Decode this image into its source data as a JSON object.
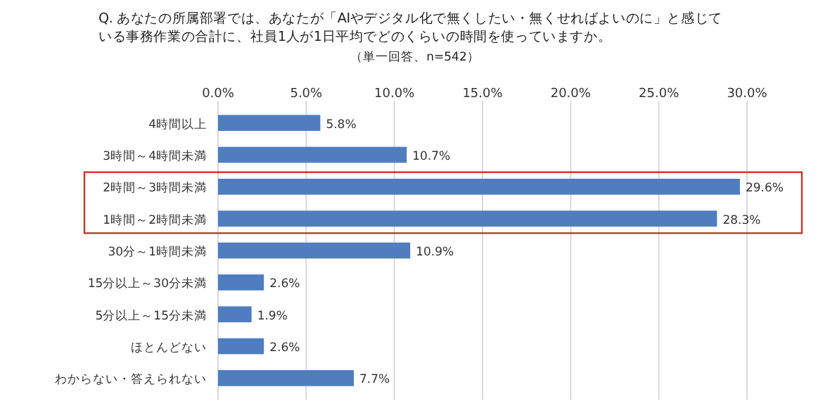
{
  "chart_data": {
    "type": "bar",
    "orientation": "horizontal",
    "title": "Q. あなたの所属部署では、あなたが「AIやデジタル化で無くしたい・無くせればよいのに」と感じている事務作業の合計に、社員1人が1日平均でどのくらいの時間を使っていますか。",
    "subtitle": "（単一回答、n=542）",
    "categories": [
      "4時間以上",
      "3時間～4時間未満",
      "2時間～3時間未満",
      "1時間～2時間未満",
      "30分～1時間未満",
      "15分以上～30分未満",
      "5分以上～15分未満",
      "ほとんどない",
      "わからない・答えられない"
    ],
    "values": [
      5.8,
      10.7,
      29.6,
      28.3,
      10.9,
      2.6,
      1.9,
      2.6,
      7.7
    ],
    "value_labels": [
      "5.8%",
      "10.7%",
      "29.6%",
      "28.3%",
      "10.9%",
      "2.6%",
      "1.9%",
      "2.6%",
      "7.7%"
    ],
    "color": "#4f7dc0",
    "xlim": [
      0,
      30
    ],
    "xticks": [
      {
        "value": 0,
        "label": "0.0%"
      },
      {
        "value": 5,
        "label": "5.0%"
      },
      {
        "value": 10,
        "label": "10.0%"
      },
      {
        "value": 15,
        "label": "15.0%"
      },
      {
        "value": 20,
        "label": "20.0%"
      },
      {
        "value": 25,
        "label": "25.0%"
      },
      {
        "value": 30,
        "label": "30.0%"
      }
    ],
    "grid": "x"
  }
}
